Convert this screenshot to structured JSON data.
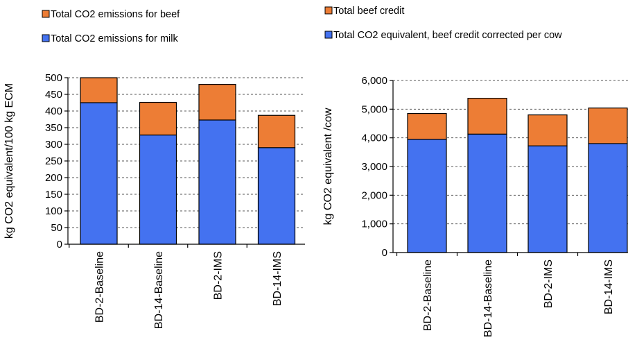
{
  "colors": {
    "milk": "#4472F0",
    "beef": "#ED7D35",
    "grid": "#555555",
    "border": "#000000"
  },
  "chart_data": [
    {
      "type": "bar",
      "stacked": true,
      "categories": [
        "BD-2-Baseline",
        "BD-14-Baseline",
        "BD-2-IMS",
        "BD-14-IMS"
      ],
      "series": [
        {
          "name": "Total CO2 emissions for milk",
          "values": [
            425,
            328,
            373,
            290
          ],
          "color": "#4472F0"
        },
        {
          "name": "Total CO2 emissions for beef",
          "values": [
            75,
            98,
            107,
            97
          ],
          "color": "#ED7D35"
        }
      ],
      "ylabel": "kg CO2 equivalent/100 kg ECM",
      "ylim": [
        0,
        500
      ],
      "yticks": [
        0,
        50,
        100,
        150,
        200,
        250,
        300,
        350,
        400,
        450,
        500
      ],
      "ytick_labels": [
        "0",
        "50",
        "100",
        "150",
        "200",
        "250",
        "300",
        "350",
        "400",
        "450",
        "500"
      ],
      "grid": true,
      "legend_position": "top-left"
    },
    {
      "type": "bar",
      "stacked": true,
      "categories": [
        "BD-2-Baseline",
        "BD-14-Baseline",
        "BD-2-IMS",
        "BD-14-IMS"
      ],
      "series": [
        {
          "name": "Total CO2 equivalent, beef credit corrected per cow",
          "values": [
            3950,
            4130,
            3720,
            3800
          ],
          "color": "#4472F0"
        },
        {
          "name": "Total beef credit",
          "values": [
            900,
            1250,
            1080,
            1240
          ],
          "color": "#ED7D35"
        }
      ],
      "ylabel": "kg CO2 equivalent /cow",
      "ylim": [
        0,
        6000
      ],
      "yticks": [
        0,
        1000,
        2000,
        3000,
        4000,
        5000,
        6000
      ],
      "ytick_labels": [
        "0",
        "1,000",
        "2,000",
        "3,000",
        "4,000",
        "5,000",
        "6,000"
      ],
      "grid": true,
      "legend_position": "top-right"
    }
  ]
}
